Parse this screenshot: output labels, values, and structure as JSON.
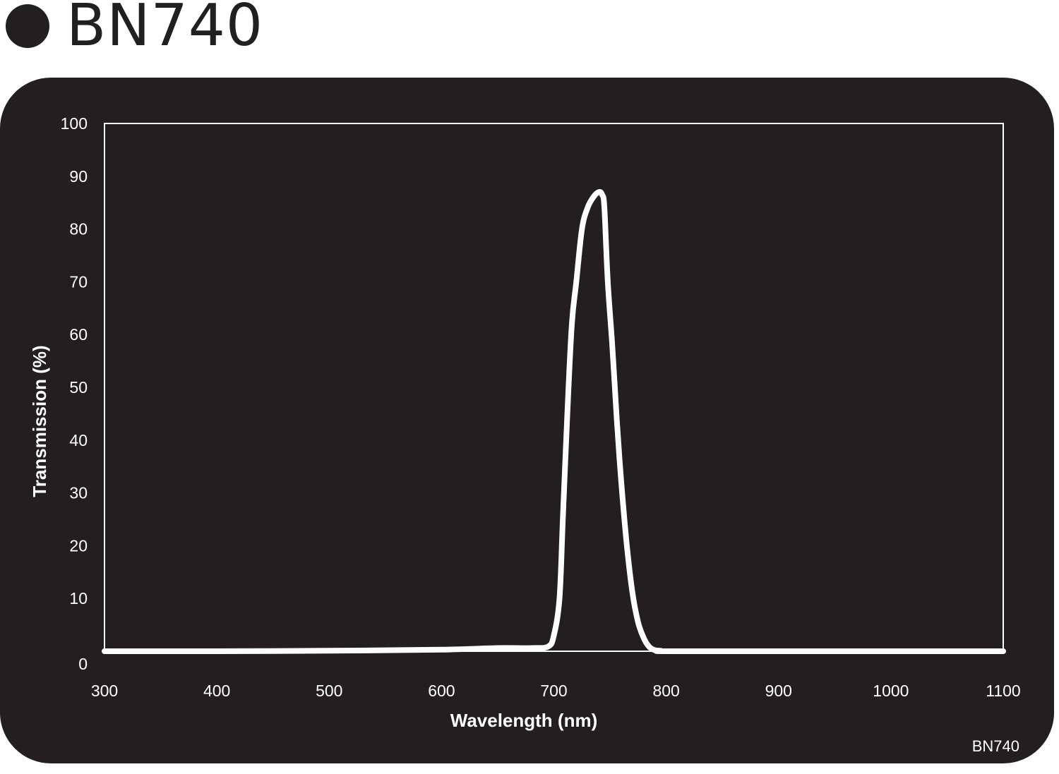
{
  "header": {
    "title": "BN740"
  },
  "chart_data": {
    "type": "line",
    "title": "BN740",
    "xlabel": "Wavelength (nm)",
    "ylabel": "Transmission (%)",
    "xlim": [
      300,
      1100
    ],
    "ylim": [
      0,
      100
    ],
    "xticks": [
      300,
      400,
      500,
      600,
      700,
      800,
      900,
      1000,
      1100
    ],
    "yticks": [
      0,
      10,
      20,
      30,
      40,
      50,
      60,
      70,
      80,
      90,
      100
    ],
    "grid": false,
    "corner_label": "BN740",
    "series": [
      {
        "color": "#ffffff",
        "x": [
          300,
          400,
          500,
          600,
          650,
          680,
          695,
          700,
          705,
          708,
          712,
          716,
          720,
          725,
          730,
          735,
          740,
          743,
          745,
          748,
          752,
          756,
          760,
          765,
          770,
          775,
          780,
          785,
          790,
          795,
          800,
          900,
          1000,
          1100
        ],
        "y": [
          0,
          0,
          0.1,
          0.3,
          0.6,
          0.6,
          0.9,
          3,
          10,
          25,
          45,
          62,
          70,
          80,
          84,
          86,
          87,
          86.5,
          84,
          70,
          58,
          44,
          32,
          20,
          11,
          5.5,
          2.5,
          0.8,
          0.2,
          0.1,
          0,
          0,
          0,
          0
        ]
      }
    ]
  }
}
